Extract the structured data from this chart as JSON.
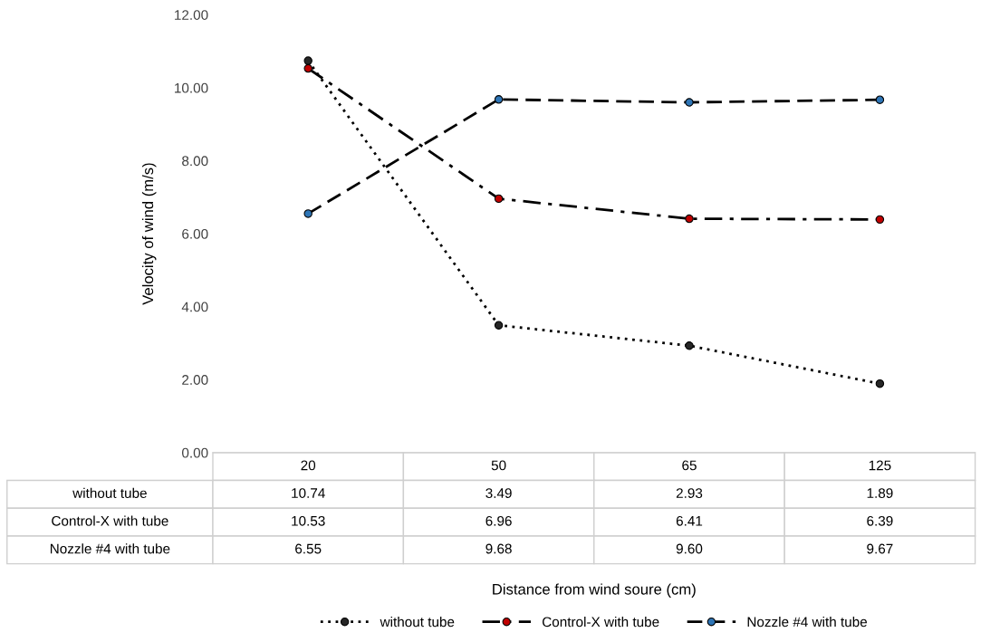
{
  "chart_data": {
    "type": "line",
    "annotations": [
      "Distance from wind soure (cm)"
    ],
    "ylabel": "Velocity of wind (m/s)",
    "categories": [
      "20",
      "50",
      "65",
      "125"
    ],
    "series": [
      {
        "name": "without tube",
        "color": "#262626",
        "line_style": "dotted",
        "values": [
          10.74,
          3.49,
          2.93,
          1.89
        ],
        "value_labels": [
          "10.74",
          "3.49",
          "2.93",
          "1.89"
        ]
      },
      {
        "name": "Control-X with tube",
        "color": "#c00000",
        "line_style": "dashdot",
        "values": [
          10.53,
          6.96,
          6.41,
          6.39
        ],
        "value_labels": [
          "10.53",
          "6.96",
          "6.41",
          "6.39"
        ]
      },
      {
        "name": "Nozzle #4 with tube",
        "color": "#2e75b6",
        "line_style": "dashed",
        "values": [
          6.55,
          9.68,
          9.6,
          9.67
        ],
        "value_labels": [
          "6.55",
          "9.68",
          "9.60",
          "9.67"
        ]
      }
    ],
    "ylim": [
      0,
      12
    ],
    "yticks": [
      {
        "value": 0,
        "label": "0.00"
      },
      {
        "value": 2,
        "label": "2.00"
      },
      {
        "value": 4,
        "label": "4.00"
      },
      {
        "value": 6,
        "label": "6.00"
      },
      {
        "value": 8,
        "label": "8.00"
      },
      {
        "value": 10,
        "label": "10.00"
      },
      {
        "value": 12,
        "label": "12.00"
      }
    ],
    "marker": "circle",
    "legend": "bottom",
    "grid": false
  }
}
